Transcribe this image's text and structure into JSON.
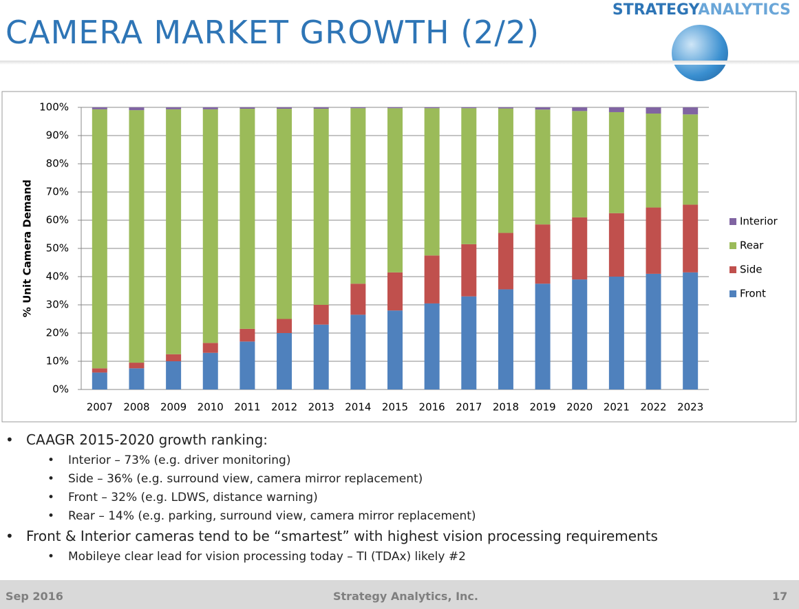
{
  "header": {
    "title": "CAMERA MARKET GROWTH (2/2)",
    "logo_word1": "STRATEGY",
    "logo_word2": "ANALYTICS"
  },
  "chart_data": {
    "type": "stacked_bar",
    "y_label": "% Unit Camera Demand",
    "categories": [
      "2007",
      "2008",
      "2009",
      "2010",
      "2011",
      "2012",
      "2013",
      "2014",
      "2015",
      "2016",
      "2017",
      "2018",
      "2019",
      "2020",
      "2021",
      "2022",
      "2023"
    ],
    "series": [
      {
        "name": "Front",
        "color": "#4f81bd",
        "values": [
          6,
          7.5,
          10,
          13,
          17,
          20,
          23,
          26.5,
          28,
          30.5,
          33,
          35.5,
          37.5,
          39,
          40,
          41,
          41.5
        ]
      },
      {
        "name": "Side",
        "color": "#c0504d",
        "values": [
          1.5,
          2,
          2.5,
          3.5,
          4.5,
          5,
          7,
          11,
          13.5,
          17,
          18.5,
          20,
          21,
          22,
          22.5,
          23.5,
          24
        ]
      },
      {
        "name": "Rear",
        "color": "#9bbb59",
        "values": [
          91.8,
          89.5,
          86.8,
          82.8,
          78,
          74.5,
          69.5,
          62.2,
          58.2,
          52.2,
          48.2,
          44.1,
          40.7,
          37.7,
          35.8,
          33.3,
          32
        ]
      },
      {
        "name": "Interior",
        "color": "#8064a2",
        "values": [
          0.7,
          1,
          0.7,
          0.7,
          0.5,
          0.5,
          0.5,
          0.3,
          0.3,
          0.3,
          0.3,
          0.4,
          0.8,
          1.3,
          1.7,
          2.2,
          2.5
        ]
      }
    ],
    "ylim": [
      0,
      100
    ],
    "yticks": [
      {
        "value": 0,
        "label": "0%"
      },
      {
        "value": 10,
        "label": "10%"
      },
      {
        "value": 20,
        "label": "20%"
      },
      {
        "value": 30,
        "label": "30%"
      },
      {
        "value": 40,
        "label": "40%"
      },
      {
        "value": 50,
        "label": "50%"
      },
      {
        "value": 60,
        "label": "60%"
      },
      {
        "value": 70,
        "label": "70%"
      },
      {
        "value": 80,
        "label": "80%"
      },
      {
        "value": 90,
        "label": "90%"
      },
      {
        "value": 100,
        "label": "100%"
      }
    ],
    "grid": true,
    "legend": "right"
  },
  "bullets": [
    {
      "text": "CAAGR 2015-2020 growth ranking:",
      "sub": [
        "Interior – 73% (e.g. driver monitoring)",
        "Side – 36% (e.g. surround view, camera mirror replacement)",
        "Front – 32% (e.g. LDWS, distance warning)",
        "Rear – 14% (e.g. parking, surround view, camera mirror replacement)"
      ]
    },
    {
      "text": "Front & Interior cameras tend to be “smartest” with highest vision processing requirements",
      "sub": [
        "Mobileye clear lead for vision processing today – TI (TDAx) likely #2"
      ]
    }
  ],
  "footer": {
    "date": "Sep 2016",
    "company": "Strategy Analytics, Inc.",
    "page": "17"
  }
}
